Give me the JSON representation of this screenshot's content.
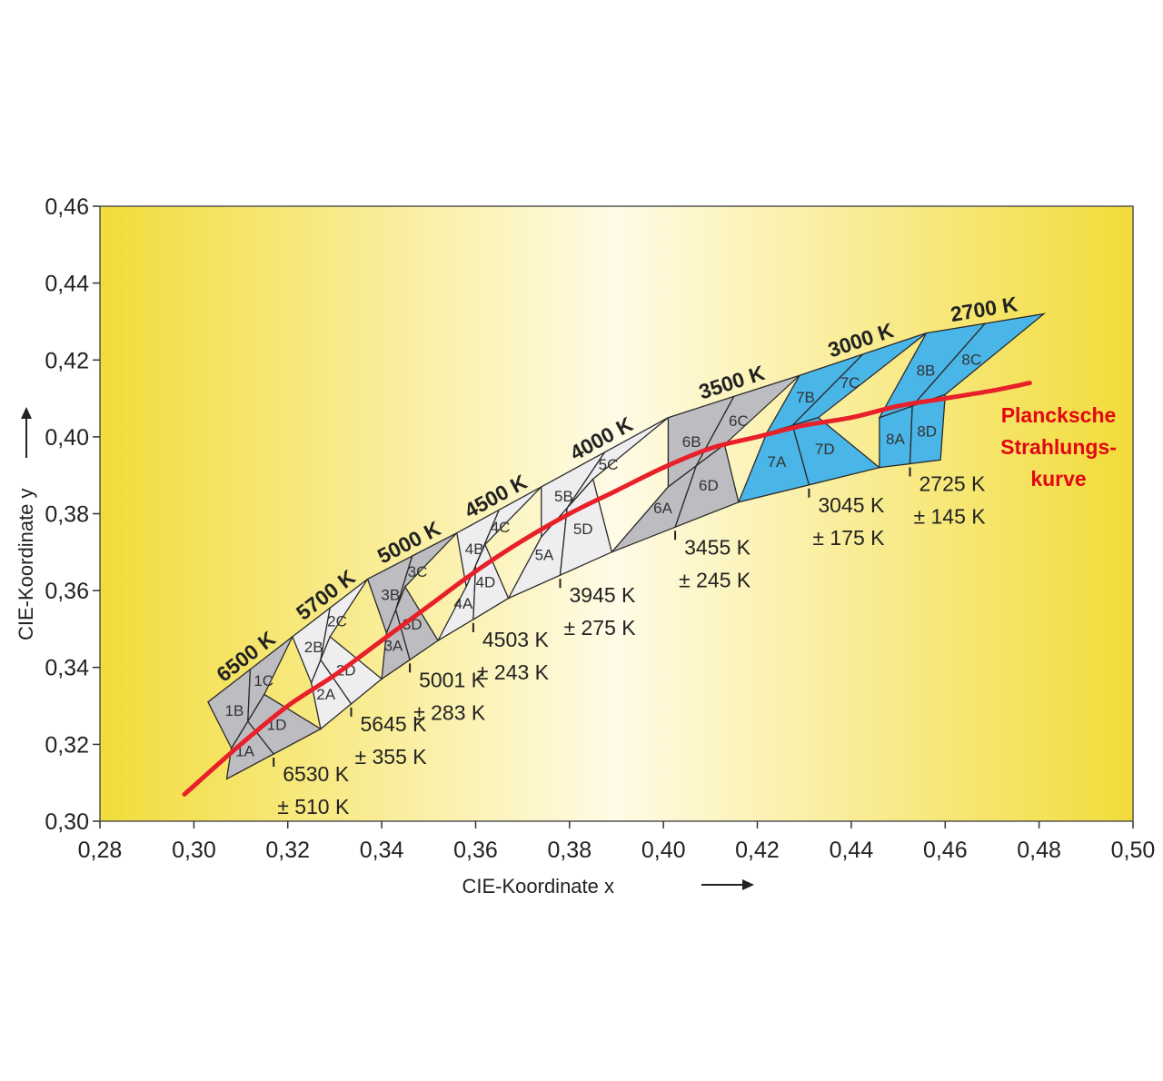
{
  "chart_data": {
    "type": "diagram",
    "xlabel": "CIE-Koordinate x",
    "ylabel": "CIE-Koordinate y",
    "xlim": [
      0.28,
      0.5
    ],
    "ylim": [
      0.3,
      0.46
    ],
    "x_ticks": [
      "0,28",
      "0,30",
      "0,32",
      "0,34",
      "0,36",
      "0,38",
      "0,40",
      "0,42",
      "0,44",
      "0,46",
      "0,48",
      "0,50"
    ],
    "y_ticks": [
      "0,30",
      "0,32",
      "0,34",
      "0,36",
      "0,38",
      "0,40",
      "0,42",
      "0,44",
      "0,46"
    ],
    "x_tick_values": [
      0.28,
      0.3,
      0.32,
      0.34,
      0.36,
      0.38,
      0.4,
      0.42,
      0.44,
      0.46,
      0.48,
      0.5
    ],
    "y_tick_values": [
      0.3,
      0.32,
      0.34,
      0.36,
      0.38,
      0.4,
      0.42,
      0.44,
      0.46
    ],
    "background": {
      "edge_color": "#f2dc3a",
      "center_color": "#fffbe6"
    },
    "colors": {
      "gray_bin": "#bdbdc1",
      "light_bin": "#eeeef0",
      "blue_bin": "#4ab6e8",
      "planck": "#e8202a"
    },
    "planck_label": "Plancksche Strahlungs- kurve",
    "planck_label_lines": [
      "Plancksche",
      "Strahlungs-",
      "kurve"
    ],
    "planck_curve": [
      {
        "x": 0.298,
        "y": 0.307
      },
      {
        "x": 0.31,
        "y": 0.32
      },
      {
        "x": 0.32,
        "y": 0.33
      },
      {
        "x": 0.33,
        "y": 0.338
      },
      {
        "x": 0.34,
        "y": 0.347
      },
      {
        "x": 0.35,
        "y": 0.356
      },
      {
        "x": 0.36,
        "y": 0.365
      },
      {
        "x": 0.37,
        "y": 0.373
      },
      {
        "x": 0.38,
        "y": 0.38
      },
      {
        "x": 0.39,
        "y": 0.386
      },
      {
        "x": 0.4,
        "y": 0.392
      },
      {
        "x": 0.41,
        "y": 0.397
      },
      {
        "x": 0.42,
        "y": 0.4
      },
      {
        "x": 0.43,
        "y": 0.403
      },
      {
        "x": 0.44,
        "y": 0.405
      },
      {
        "x": 0.45,
        "y": 0.408
      },
      {
        "x": 0.46,
        "y": 0.41
      },
      {
        "x": 0.47,
        "y": 0.412
      },
      {
        "x": 0.478,
        "y": 0.414
      }
    ],
    "cct_groups": [
      {
        "cct": "6500 K",
        "avg": "6530 K",
        "tol": "± 510 K",
        "color": "gray",
        "bins": [
          "1A",
          "1B",
          "1C",
          "1D"
        ],
        "top": [
          [
            0.303,
            0.331
          ],
          [
            0.321,
            0.348
          ]
        ],
        "mid": [
          [
            0.308,
            0.319
          ],
          [
            0.315,
            0.333
          ]
        ],
        "bottom": [
          [
            0.307,
            0.311
          ],
          [
            0.327,
            0.324
          ]
        ]
      },
      {
        "cct": "5700 K",
        "avg": "5645 K",
        "tol": "± 355 K",
        "color": "light",
        "bins": [
          "2A",
          "2B",
          "2C",
          "2D"
        ],
        "top": [
          [
            0.321,
            0.348
          ],
          [
            0.337,
            0.363
          ]
        ],
        "mid": [
          [
            0.325,
            0.336
          ],
          [
            0.329,
            0.348
          ]
        ],
        "bottom": [
          [
            0.327,
            0.324
          ],
          [
            0.34,
            0.337
          ]
        ]
      },
      {
        "cct": "5000 K",
        "avg": "5001 K",
        "tol": "± 283 K",
        "color": "gray",
        "bins": [
          "3A",
          "3B",
          "3C",
          "3D"
        ],
        "top": [
          [
            0.337,
            0.363
          ],
          [
            0.356,
            0.375
          ]
        ],
        "mid": [
          [
            0.341,
            0.349
          ],
          [
            0.345,
            0.361
          ]
        ],
        "bottom": [
          [
            0.34,
            0.337
          ],
          [
            0.352,
            0.347
          ]
        ]
      },
      {
        "cct": "4500 K",
        "avg": "4503 K",
        "tol": "± 243 K",
        "color": "light",
        "bins": [
          "4A",
          "4B",
          "4C",
          "4D"
        ],
        "top": [
          [
            0.356,
            0.375
          ],
          [
            0.374,
            0.387
          ]
        ],
        "mid": [
          [
            0.358,
            0.361
          ],
          [
            0.362,
            0.372
          ]
        ],
        "bottom": [
          [
            0.352,
            0.347
          ],
          [
            0.367,
            0.358
          ]
        ]
      },
      {
        "cct": "4000 K",
        "avg": "3945 K",
        "tol": "± 275 K",
        "color": "light",
        "bins": [
          "5A",
          "5B",
          "5C",
          "5D"
        ],
        "top": [
          [
            0.374,
            0.387
          ],
          [
            0.401,
            0.405
          ]
        ],
        "mid": [
          [
            0.374,
            0.374
          ],
          [
            0.385,
            0.389
          ]
        ],
        "bottom": [
          [
            0.367,
            0.358
          ],
          [
            0.389,
            0.37
          ]
        ]
      },
      {
        "cct": "3500 K",
        "avg": "3455 K",
        "tol": "± 245 K",
        "color": "gray",
        "bins": [
          "6A",
          "6B",
          "6C",
          "6D"
        ],
        "top": [
          [
            0.401,
            0.405
          ],
          [
            0.429,
            0.416
          ]
        ],
        "mid": [
          [
            0.401,
            0.387
          ],
          [
            0.413,
            0.398
          ]
        ],
        "bottom": [
          [
            0.389,
            0.37
          ],
          [
            0.416,
            0.383
          ]
        ]
      },
      {
        "cct": "3000 K",
        "avg": "3045 K",
        "tol": "± 175 K",
        "color": "blue",
        "bins": [
          "7A",
          "7B",
          "7C",
          "7D"
        ],
        "top": [
          [
            0.429,
            0.416
          ],
          [
            0.456,
            0.427
          ]
        ],
        "mid": [
          [
            0.422,
            0.401
          ],
          [
            0.433,
            0.405
          ]
        ],
        "bottom": [
          [
            0.416,
            0.383
          ],
          [
            0.446,
            0.392
          ]
        ]
      },
      {
        "cct": "2700 K",
        "avg": "2725 K",
        "tol": "± 145 K",
        "color": "blue",
        "bins": [
          "8A",
          "8B",
          "8C",
          "8D"
        ],
        "top": [
          [
            0.456,
            0.427
          ],
          [
            0.481,
            0.432
          ]
        ],
        "mid": [
          [
            0.446,
            0.405
          ],
          [
            0.46,
            0.411
          ]
        ],
        "bottom": [
          [
            0.446,
            0.392
          ],
          [
            0.459,
            0.394
          ]
        ]
      }
    ]
  }
}
